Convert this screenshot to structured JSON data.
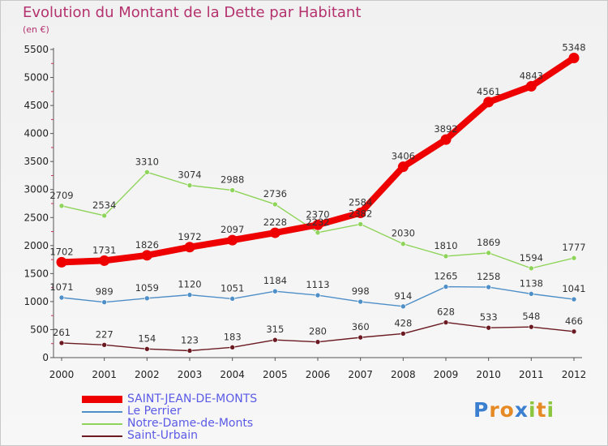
{
  "header": {
    "title": "Evolution du Montant de la Dette par Habitant",
    "subtitle": "(en €)"
  },
  "branding": {
    "text": "Proxiti"
  },
  "chart_data": {
    "type": "line",
    "x": [
      "2000",
      "2001",
      "2002",
      "2003",
      "2004",
      "2005",
      "2006",
      "2007",
      "2008",
      "2009",
      "2010",
      "2011",
      "2012"
    ],
    "yticks": [
      0,
      500,
      1000,
      1500,
      2000,
      2500,
      3000,
      3500,
      4000,
      4500,
      5000,
      5500
    ],
    "ylim": [
      0,
      5500
    ],
    "grid": false,
    "legend_position": "bottom-left",
    "series": [
      {
        "name": "Saint-Urbain",
        "color": "#6b1a22",
        "values": [
          261,
          227,
          154,
          123,
          183,
          315,
          280,
          360,
          428,
          628,
          533,
          548,
          466
        ]
      },
      {
        "name": "Le Perrier",
        "color": "#4f8fc8",
        "values": [
          1071,
          989,
          1059,
          1120,
          1051,
          1184,
          1113,
          998,
          914,
          1265,
          1258,
          1138,
          1041
        ]
      },
      {
        "name": "Notre-Dame-de-Monts",
        "color": "#8fd45a",
        "values": [
          2709,
          2534,
          3310,
          3074,
          2988,
          2736,
          2232,
          2382,
          2030,
          1810,
          1869,
          1594,
          1777
        ]
      },
      {
        "name": "SAINT-JEAN-DE-MONTS",
        "color": "#ee0000",
        "values": [
          1702,
          1731,
          1826,
          1972,
          2097,
          2228,
          2370,
          2584,
          3406,
          3892,
          4561,
          4843,
          5348
        ]
      }
    ]
  },
  "legend": {
    "items": [
      {
        "label": "SAINT-JEAN-DE-MONTS",
        "color": "#ee0000",
        "text_color": "#5a5ae6"
      },
      {
        "label": "Le Perrier",
        "color": "#4f8fc8",
        "text_color": "#5a5ae6"
      },
      {
        "label": "Notre-Dame-de-Monts",
        "color": "#8fd45a",
        "text_color": "#5a5ae6"
      },
      {
        "label": "Saint-Urbain",
        "color": "#6b1a22",
        "text_color": "#5a5ae6"
      }
    ]
  }
}
